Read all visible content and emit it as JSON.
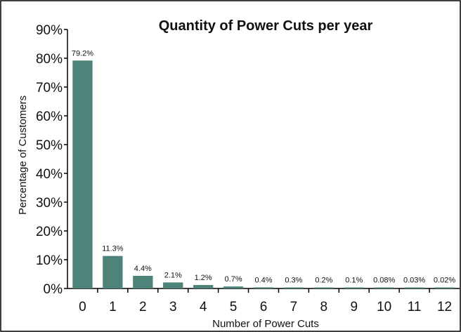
{
  "chart_data": {
    "type": "bar",
    "title": "Quantity of Power Cuts per year",
    "xlabel": "Number of Power Cuts",
    "ylabel": "Percentage of Customers",
    "categories": [
      "0",
      "1",
      "2",
      "3",
      "4",
      "5",
      "6",
      "7",
      "8",
      "9",
      "10",
      "11",
      "12"
    ],
    "values": [
      79.2,
      11.3,
      4.4,
      2.1,
      1.2,
      0.7,
      0.4,
      0.3,
      0.2,
      0.1,
      0.08,
      0.03,
      0.02
    ],
    "value_labels": [
      "79.2%",
      "11.3%",
      "4.4%",
      "2.1%",
      "1.2%",
      "0.7%",
      "0.4%",
      "0.3%",
      "0.2%",
      "0.1%",
      "0.08%",
      "0.03%",
      "0.02%"
    ],
    "ylim": [
      0,
      90
    ],
    "yticks": [
      0,
      10,
      20,
      30,
      40,
      50,
      60,
      70,
      80,
      90
    ],
    "ytick_labels": [
      "0%",
      "10%",
      "20%",
      "30%",
      "40%",
      "50%",
      "60%",
      "70%",
      "80%",
      "90%"
    ],
    "grid": false,
    "bar_color": "#4e8379",
    "frame_color": "#000000"
  }
}
